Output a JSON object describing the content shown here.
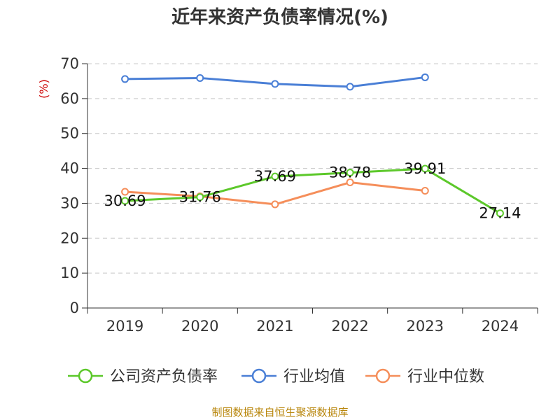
{
  "chart_data": {
    "type": "line",
    "title": "近年来资产负债率情况(%)",
    "ylabel": "(%)",
    "xlabel": "",
    "ylim": [
      0,
      70
    ],
    "yticks": [
      0,
      10,
      20,
      30,
      40,
      50,
      60,
      70
    ],
    "categories": [
      "2019",
      "2020",
      "2021",
      "2022",
      "2023",
      "2024"
    ],
    "grid": true,
    "legend_position": "bottom",
    "series": [
      {
        "name": "公司资产负债率",
        "color": "#5cc82a",
        "values": [
          30.69,
          31.76,
          37.69,
          38.78,
          39.91,
          27.14
        ],
        "labels": [
          "30.69",
          "31.76",
          "37.69",
          "38.78",
          "39.91",
          "27.14"
        ]
      },
      {
        "name": "行业均值",
        "color": "#4a7fd6",
        "values": [
          65.6,
          65.9,
          64.2,
          63.4,
          66.1,
          null
        ]
      },
      {
        "name": "行业中位数",
        "color": "#f58e5a",
        "values": [
          33.3,
          32.0,
          29.7,
          36.0,
          33.6,
          null
        ]
      }
    ]
  },
  "source": "制图数据来自恒生聚源数据库"
}
